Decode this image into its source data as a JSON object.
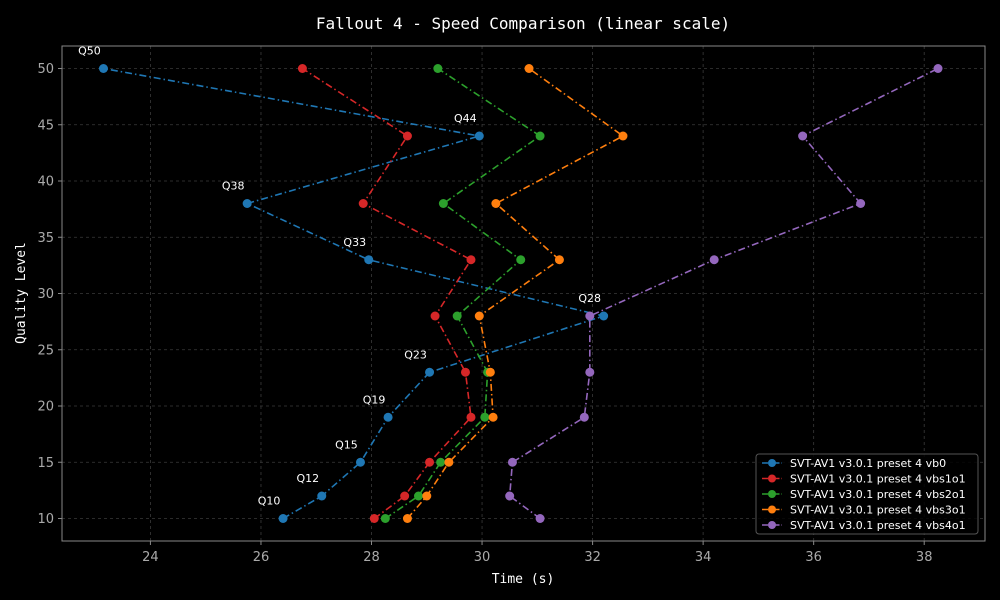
{
  "chart_data": {
    "type": "line",
    "title": "Fallout 4 - Speed Comparison (linear scale)",
    "xlabel": "Time (s)",
    "ylabel": "Quality Level",
    "xlim": [
      22.4,
      39.1
    ],
    "ylim": [
      8,
      52
    ],
    "xticks": [
      24,
      26,
      28,
      30,
      32,
      34,
      36,
      38
    ],
    "yticks": [
      10,
      15,
      20,
      25,
      30,
      35,
      40,
      45,
      50
    ],
    "grid": true,
    "legend_position": "lower-right",
    "line_style": "dash-dot with circle markers",
    "series": [
      {
        "name": "SVT-AV1 v3.0.1 preset 4 vb0",
        "color": "#1f77b4",
        "points": [
          [
            26.4,
            10
          ],
          [
            27.1,
            12
          ],
          [
            27.8,
            15
          ],
          [
            28.3,
            19
          ],
          [
            29.05,
            23
          ],
          [
            32.2,
            28
          ],
          [
            27.95,
            33
          ],
          [
            25.75,
            38
          ],
          [
            29.95,
            44
          ],
          [
            23.15,
            50
          ]
        ],
        "annotations": [
          {
            "text": "Q10",
            "x": 26.4,
            "y": 10
          },
          {
            "text": "Q12",
            "x": 27.1,
            "y": 12
          },
          {
            "text": "Q15",
            "x": 27.8,
            "y": 15
          },
          {
            "text": "Q19",
            "x": 28.3,
            "y": 19
          },
          {
            "text": "Q23",
            "x": 29.05,
            "y": 23
          },
          {
            "text": "Q28",
            "x": 32.2,
            "y": 28
          },
          {
            "text": "Q33",
            "x": 27.95,
            "y": 33
          },
          {
            "text": "Q38",
            "x": 25.75,
            "y": 38
          },
          {
            "text": "Q44",
            "x": 29.95,
            "y": 44
          },
          {
            "text": "Q50",
            "x": 23.15,
            "y": 50
          }
        ]
      },
      {
        "name": "SVT-AV1 v3.0.1 preset 4 vbs1o1",
        "color": "#d62728",
        "points": [
          [
            28.05,
            10
          ],
          [
            28.6,
            12
          ],
          [
            29.05,
            15
          ],
          [
            29.8,
            19
          ],
          [
            29.7,
            23
          ],
          [
            29.15,
            28
          ],
          [
            29.8,
            33
          ],
          [
            27.85,
            38
          ],
          [
            28.65,
            44
          ],
          [
            26.75,
            50
          ]
        ]
      },
      {
        "name": "SVT-AV1 v3.0.1 preset 4 vbs2o1",
        "color": "#2ca02c",
        "points": [
          [
            28.25,
            10
          ],
          [
            28.85,
            12
          ],
          [
            29.25,
            15
          ],
          [
            30.05,
            19
          ],
          [
            30.1,
            23
          ],
          [
            29.55,
            28
          ],
          [
            30.7,
            33
          ],
          [
            29.3,
            38
          ],
          [
            31.05,
            44
          ],
          [
            29.2,
            50
          ]
        ]
      },
      {
        "name": "SVT-AV1 v3.0.1 preset 4 vbs3o1",
        "color": "#ff7f0e",
        "points": [
          [
            28.65,
            10
          ],
          [
            29.0,
            12
          ],
          [
            29.4,
            15
          ],
          [
            30.2,
            19
          ],
          [
            30.15,
            23
          ],
          [
            29.95,
            28
          ],
          [
            31.4,
            33
          ],
          [
            30.25,
            38
          ],
          [
            32.55,
            44
          ],
          [
            30.85,
            50
          ]
        ]
      },
      {
        "name": "SVT-AV1 v3.0.1 preset 4 vbs4o1",
        "color": "#9467bd",
        "points": [
          [
            31.05,
            10
          ],
          [
            30.5,
            12
          ],
          [
            30.55,
            15
          ],
          [
            31.85,
            19
          ],
          [
            31.95,
            23
          ],
          [
            31.95,
            28
          ],
          [
            34.2,
            33
          ],
          [
            36.85,
            38
          ],
          [
            35.8,
            44
          ],
          [
            38.25,
            50
          ]
        ]
      }
    ]
  }
}
